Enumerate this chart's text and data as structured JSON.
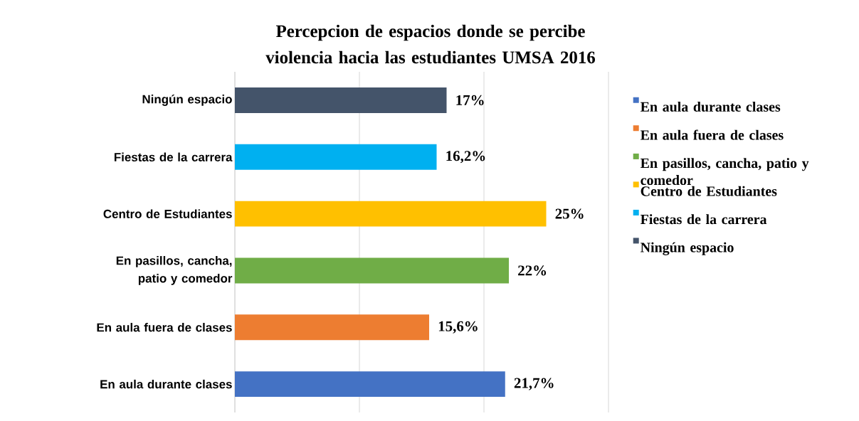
{
  "chart_data": {
    "type": "bar",
    "orientation": "horizontal",
    "title": "Percepcion de espacios donde se percibe  violencia hacia las estudiantes UMSA 2016",
    "categories": [
      "Ningún espacio",
      "Fiestas de la carrera",
      "Centro de Estudiantes",
      "En pasillos, cancha, patio y comedor",
      "En aula fuera de clases",
      "En aula durante clases"
    ],
    "series": [
      {
        "name": "Ningún espacio",
        "color": "#44546a",
        "values": [
          17,
          null,
          null,
          null,
          null,
          null
        ],
        "value_labels": [
          "17%",
          null,
          null,
          null,
          null,
          null
        ]
      },
      {
        "name": "Fiestas de la carrera",
        "color": "#00b0f0",
        "values": [
          null,
          16.2,
          null,
          null,
          null,
          null
        ],
        "value_labels": [
          null,
          "16,2%",
          null,
          null,
          null,
          null
        ]
      },
      {
        "name": "Centro de Estudiantes",
        "color": "#ffc000",
        "values": [
          null,
          null,
          25,
          null,
          null,
          null
        ],
        "value_labels": [
          null,
          null,
          "25%",
          null,
          null,
          null
        ]
      },
      {
        "name": "En pasillos, cancha, patio y comedor",
        "color": "#70ad47",
        "values": [
          null,
          null,
          null,
          22,
          null,
          null
        ],
        "value_labels": [
          null,
          null,
          null,
          "22%",
          null,
          null
        ]
      },
      {
        "name": "En aula fuera de clases",
        "color": "#ed7d31",
        "values": [
          null,
          null,
          null,
          null,
          15.6,
          null
        ],
        "value_labels": [
          null,
          null,
          null,
          null,
          "15,6%",
          null
        ]
      },
      {
        "name": "En aula durante clases",
        "color": "#4472c4",
        "values": [
          null,
          null,
          null,
          null,
          null,
          21.7
        ],
        "value_labels": [
          null,
          null,
          null,
          null,
          null,
          "21,7%"
        ]
      }
    ],
    "xlim": [
      0,
      30
    ],
    "xticks": [
      {
        "value": 0,
        "label": null
      },
      {
        "value": 10,
        "label": null
      },
      {
        "value": 20,
        "label": null
      },
      {
        "value": 30,
        "label": null
      }
    ],
    "tick_labels": "y",
    "grid": "x",
    "legend": "right"
  }
}
